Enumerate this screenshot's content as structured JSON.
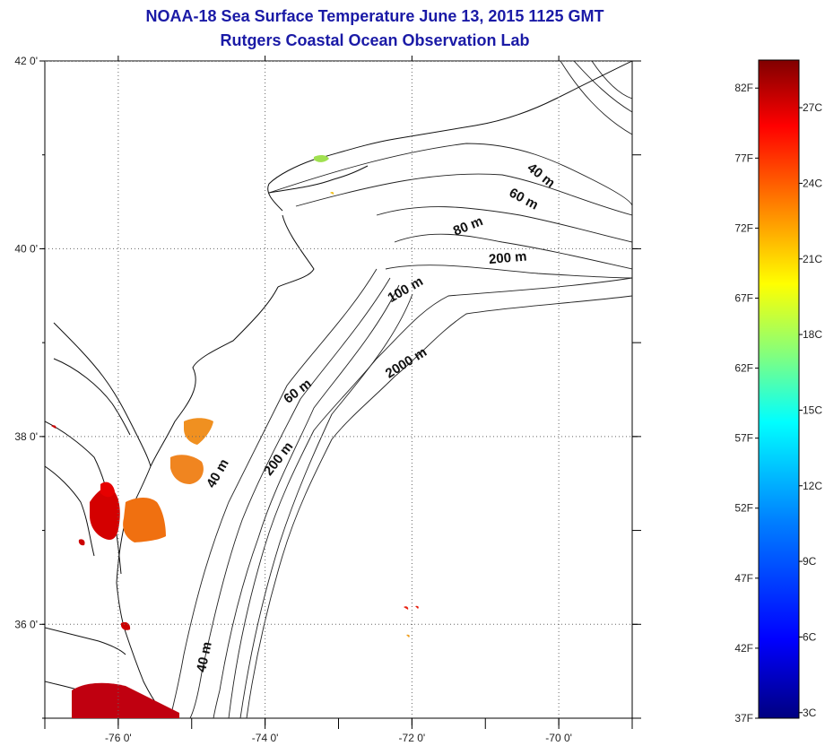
{
  "title": {
    "line1": "NOAA-18 Sea Surface Temperature June 13, 2015 1125 GMT",
    "line2": "Rutgers Coastal Ocean Observation Lab"
  },
  "map": {
    "lon_range": [
      -77.0,
      -69.0
    ],
    "lat_range": [
      35.0,
      42.0
    ],
    "lat_ticks": [
      {
        "value": 42,
        "label": "42 0'"
      },
      {
        "value": 40,
        "label": "40 0'"
      },
      {
        "value": 38,
        "label": "38 0'"
      },
      {
        "value": 36,
        "label": "36 0'"
      }
    ],
    "lon_ticks": [
      {
        "value": -76,
        "label": "-76 0'"
      },
      {
        "value": -74,
        "label": "-74 0'"
      },
      {
        "value": -72,
        "label": "-72 0'"
      },
      {
        "value": -70,
        "label": "-70 0'"
      }
    ],
    "grid": "dotted",
    "contour_labels": [
      "40 m",
      "60 m",
      "80 m",
      "200 m",
      "100 m",
      "2000 m",
      "60 m",
      "200 m",
      "40 m",
      "40 m"
    ],
    "colors": {
      "coastline": "#222222",
      "grid": "#666666",
      "land": "#ffffff"
    }
  },
  "colorbar": {
    "fahrenheit_labels": [
      "82F",
      "77F",
      "72F",
      "67F",
      "62F",
      "57F",
      "52F",
      "47F",
      "42F",
      "37F"
    ],
    "celsius_labels": [
      "27C",
      "24C",
      "21C",
      "18C",
      "15C",
      "12C",
      "9C",
      "6C",
      "3C"
    ],
    "range_f": [
      37,
      84
    ],
    "stops": [
      "#000080",
      "#0000ff",
      "#0080ff",
      "#00ffff",
      "#80ff80",
      "#ffff00",
      "#ff8000",
      "#ff0000",
      "#800000"
    ]
  }
}
